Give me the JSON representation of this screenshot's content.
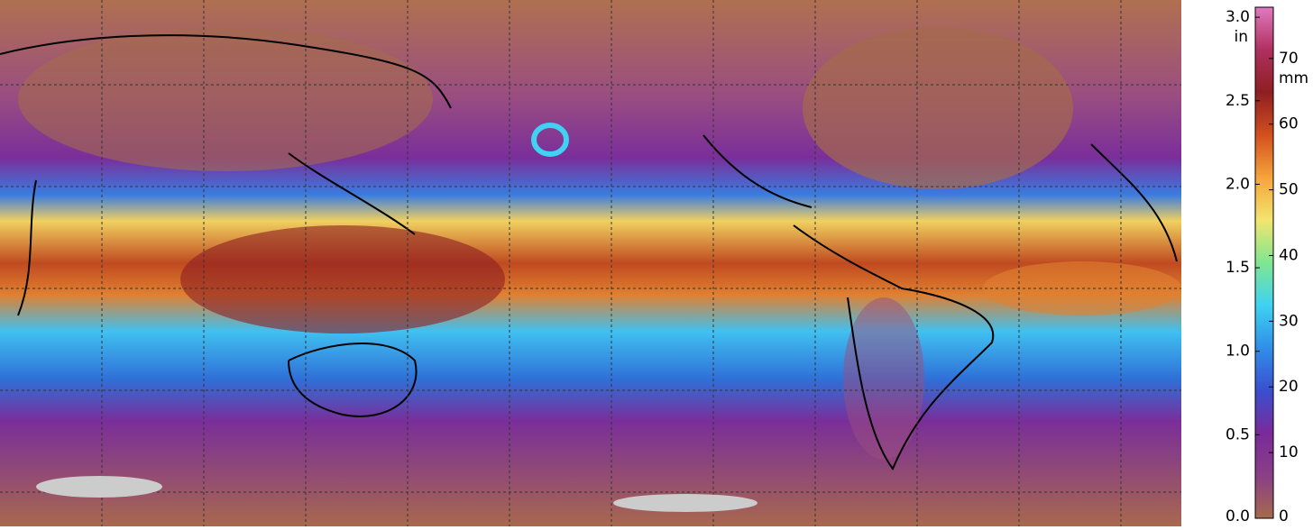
{
  "colorbar": {
    "colors": [
      "#a56a4c",
      "#8a3f86",
      "#7a2a9a",
      "#3a4fd0",
      "#2f8fe8",
      "#3fd2f2",
      "#7fe690",
      "#f2e56e",
      "#f5a43a",
      "#d2501e",
      "#8e1e22",
      "#b03060",
      "#e07ac0"
    ],
    "in": {
      "unit": "in",
      "lim": [
        0,
        3.06
      ],
      "ticks": [
        {
          "value": 0,
          "label": "0.0"
        },
        0.5,
        {
          "value": 1,
          "label": "1.0"
        },
        1.5,
        {
          "value": 2,
          "label": "2.0"
        },
        2.5,
        {
          "value": 3,
          "label": "3.0"
        }
      ]
    },
    "mm": {
      "unit": "mm",
      "lim": [
        0,
        77.8
      ],
      "ticks": [
        0,
        10,
        20,
        30,
        40,
        50,
        60,
        70
      ]
    }
  }
}
